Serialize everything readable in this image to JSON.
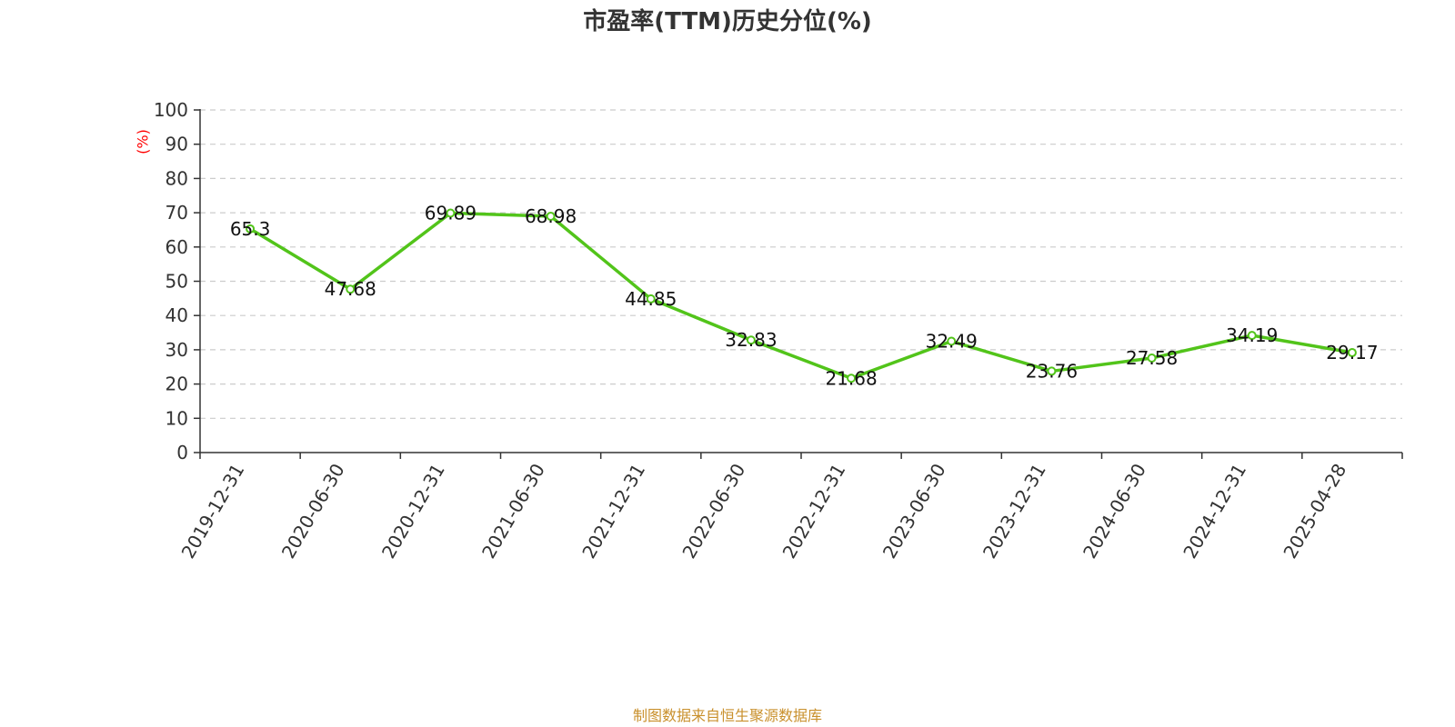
{
  "chart_data": {
    "type": "line",
    "title": "市盈率(TTM)历史分位(%)",
    "ylabel": "(%)",
    "xlabel": "",
    "ylim": [
      0,
      100
    ],
    "yticks": [
      0,
      10,
      20,
      30,
      40,
      50,
      60,
      70,
      80,
      90,
      100
    ],
    "grid": true,
    "categories": [
      "2019-12-31",
      "2020-06-30",
      "2020-12-31",
      "2021-06-30",
      "2021-12-31",
      "2022-06-30",
      "2022-12-31",
      "2023-06-30",
      "2023-12-31",
      "2024-06-30",
      "2024-12-31",
      "2025-04-28"
    ],
    "series": [
      {
        "values": [
          65.3,
          47.68,
          69.89,
          68.98,
          44.85,
          32.83,
          21.68,
          32.49,
          23.76,
          27.58,
          34.19,
          29.17
        ]
      }
    ],
    "data_labels": [
      "65.3",
      "47.68",
      "69.89",
      "68.98",
      "44.85",
      "32.83",
      "21.68",
      "32.49",
      "23.76",
      "27.58",
      "34.19",
      "29.17"
    ],
    "colors": {
      "line": "#52c41a",
      "ylabel": "#ff0000",
      "source": "#c9902c",
      "grid": "#cccccc",
      "axis": "#333333"
    }
  },
  "footer": {
    "source": "制图数据来自恒生聚源数据库"
  }
}
